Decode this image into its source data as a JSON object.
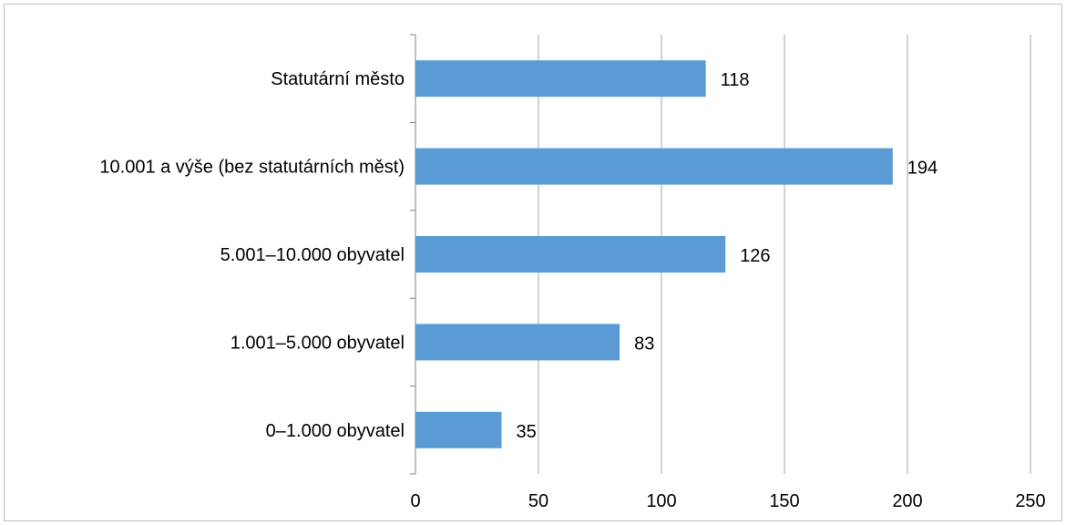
{
  "chart_data": {
    "type": "bar",
    "orientation": "horizontal",
    "categories": [
      "Statutární město",
      "10.001 a výše (bez statutárních měst)",
      "5.001–10.000 obyvatel",
      "1.001–5.000 obyvatel",
      "0–1.000 obyvatel"
    ],
    "values": [
      118,
      194,
      126,
      83,
      35
    ],
    "xlim": [
      0,
      250
    ],
    "x_ticks": [
      0,
      50,
      100,
      150,
      200,
      250
    ],
    "title": "",
    "xlabel": "",
    "ylabel": "",
    "grid": "vertical",
    "legend": "none",
    "data_labels": true,
    "bar_color": "#5b9bd5",
    "gridline_color": "#a6a6a6",
    "axis_color": "#808080"
  }
}
